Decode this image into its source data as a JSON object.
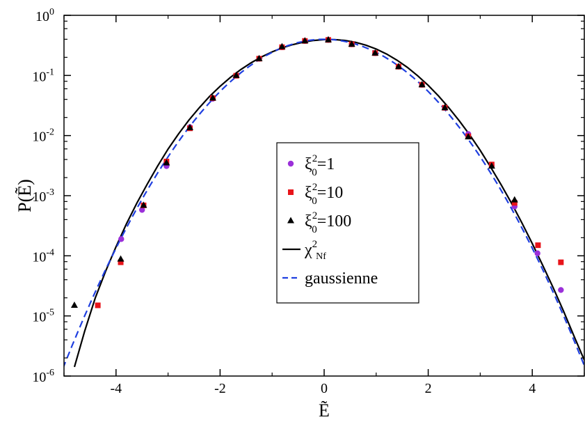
{
  "chart_data": {
    "type": "scatter",
    "xlabel": "Ẽ",
    "ylabel": "P(Ẽ)",
    "xlim": [
      -5,
      5
    ],
    "ylim": [
      1e-06,
      1
    ],
    "yscale": "log",
    "grid": false,
    "legend_position": "center-right",
    "x_ticks": [
      -4,
      -2,
      0,
      2,
      4
    ],
    "x_tick_labels": [
      "-4",
      "-2",
      "0",
      "2",
      "4"
    ],
    "y_ticks": [
      {
        "value": 1,
        "base": "10",
        "exp": "0"
      },
      {
        "value": 0.1,
        "base": "10",
        "exp": "-1"
      },
      {
        "value": 0.01,
        "base": "10",
        "exp": "-2"
      },
      {
        "value": 0.001,
        "base": "10",
        "exp": "-3"
      },
      {
        "value": 0.0001,
        "base": "10",
        "exp": "-4"
      },
      {
        "value": 1e-05,
        "base": "10",
        "exp": "-5"
      },
      {
        "value": 1e-06,
        "base": "10",
        "exp": "-6"
      }
    ],
    "series": [
      {
        "name": "ξ0²=1",
        "legend": {
          "symbol": "ξ",
          "sup": "2",
          "sub": "0",
          "rest": "=1"
        },
        "marker": "circle",
        "color": "#9b30d9",
        "x": [
          -3.9,
          -3.5,
          -3.03,
          -2.58,
          -2.14,
          -1.69,
          -1.25,
          -0.81,
          -0.37,
          0.08,
          0.53,
          0.98,
          1.43,
          1.88,
          2.32,
          2.77,
          3.22,
          3.66,
          4.1,
          4.55
        ],
        "y": [
          0.00019,
          0.00058,
          0.0031,
          0.0138,
          0.041,
          0.099,
          0.19,
          0.295,
          0.375,
          0.39,
          0.33,
          0.235,
          0.14,
          0.07,
          0.029,
          0.0106,
          0.0032,
          0.00066,
          0.00011,
          2.7e-05
        ]
      },
      {
        "name": "ξ0²=10",
        "legend": {
          "symbol": "ξ",
          "sup": "2",
          "sub": "0",
          "rest": "=10"
        },
        "marker": "square",
        "color": "#e8141a",
        "x": [
          -4.35,
          -3.91,
          -3.47,
          -3.03,
          -2.58,
          -2.14,
          -1.69,
          -1.25,
          -0.81,
          -0.37,
          0.08,
          0.53,
          0.98,
          1.43,
          1.88,
          2.32,
          2.77,
          3.22,
          3.66,
          4.11,
          4.55
        ],
        "y": [
          1.5e-05,
          7.8e-05,
          0.00069,
          0.0037,
          0.0132,
          0.042,
          0.099,
          0.19,
          0.295,
          0.375,
          0.39,
          0.33,
          0.235,
          0.14,
          0.07,
          0.029,
          0.0097,
          0.0033,
          0.00076,
          0.00015,
          7.8e-05
        ]
      },
      {
        "name": "ξ0²=100",
        "legend": {
          "symbol": "ξ",
          "sup": "2",
          "sub": "0",
          "rest": "=100"
        },
        "marker": "triangle",
        "color": "#000000",
        "x": [
          -4.8,
          -3.91,
          -3.47,
          -3.03,
          -2.58,
          -2.14,
          -1.69,
          -1.25,
          -0.81,
          -0.37,
          0.08,
          0.53,
          0.98,
          1.43,
          1.88,
          2.32,
          2.77,
          3.22,
          3.66
        ],
        "y": [
          1.5e-05,
          8.8e-05,
          0.00069,
          0.0035,
          0.0135,
          0.042,
          0.1,
          0.19,
          0.3,
          0.375,
          0.39,
          0.33,
          0.235,
          0.14,
          0.07,
          0.029,
          0.0095,
          0.0031,
          0.00085
        ]
      }
    ],
    "curves": [
      {
        "name": "χ²Nf",
        "legend": {
          "symbol": "χ",
          "sup": "2",
          "sub": "Nf"
        },
        "style": "solid",
        "color": "#000000",
        "x": [
          -4.8,
          -4.6,
          -4.4,
          -4.2,
          -4.0,
          -3.8,
          -3.6,
          -3.4,
          -3.2,
          -3.0,
          -2.8,
          -2.6,
          -2.4,
          -2.2,
          -2.0,
          -1.8,
          -1.6,
          -1.4,
          -1.2,
          -1.0,
          -0.8,
          -0.6,
          -0.4,
          -0.2,
          0.0,
          0.2,
          0.4,
          0.6,
          0.8,
          1.0,
          1.2,
          1.4,
          1.6,
          1.8,
          2.0,
          2.2,
          2.4,
          2.6,
          2.8,
          3.0,
          3.2,
          3.4,
          3.6,
          3.8,
          4.0,
          4.2,
          4.4,
          4.6,
          4.8,
          5.0
        ],
        "y": [
          1e-06,
          4e-06,
          1.4e-05,
          3.9e-05,
          0.0001,
          0.00024,
          0.00053,
          0.0011,
          0.0022,
          0.0042,
          0.0075,
          0.0127,
          0.0205,
          0.0317,
          0.0466,
          0.0657,
          0.0887,
          0.1152,
          0.1441,
          0.1741,
          0.2035,
          0.2304,
          0.253,
          0.2695,
          0.2785,
          0.2788,
          0.2697,
          0.2514,
          0.2255,
          0.1942,
          0.1603,
          0.1266,
          0.0959,
          0.0695,
          0.0483,
          0.032,
          0.0203,
          0.0123,
          0.0072,
          0.004,
          0.0021,
          0.00108,
          0.00053,
          0.00025,
          0.000113,
          4.9e-05,
          2.1e-05,
          8.5e-06,
          3.3e-06,
          1.3e-06
        ]
      },
      {
        "name": "gaussienne",
        "legend": {
          "text": "gaussienne"
        },
        "style": "dashed",
        "color": "#1f3fe0",
        "mean": 0,
        "sd": 1
      }
    ]
  }
}
